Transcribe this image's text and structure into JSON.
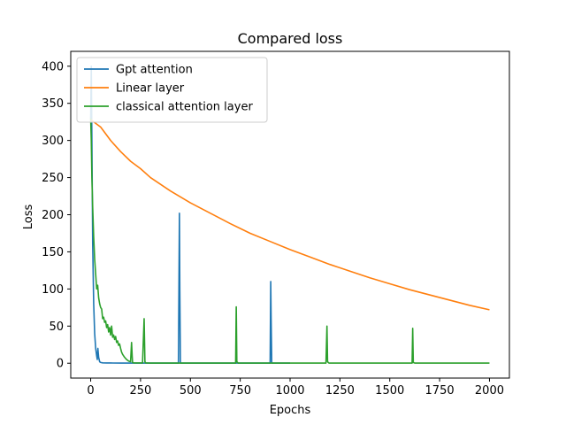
{
  "chart_data": {
    "type": "line",
    "title": "Compared loss",
    "xlabel": "Epochs",
    "ylabel": "Loss",
    "xlim": [
      -100,
      2100
    ],
    "ylim": [
      -20,
      420
    ],
    "xticks": [
      0,
      250,
      500,
      750,
      1000,
      1250,
      1500,
      1750,
      2000
    ],
    "yticks": [
      0,
      50,
      100,
      150,
      200,
      250,
      300,
      350,
      400
    ],
    "grid": false,
    "legend_position": "upper-left",
    "series": [
      {
        "name": "Gpt attention",
        "color": "#1f77b4",
        "x": [
          0,
          3,
          6,
          10,
          15,
          20,
          25,
          30,
          33,
          36,
          40,
          45,
          50,
          60,
          80,
          100,
          150,
          200,
          250,
          300,
          350,
          400,
          440,
          445,
          447,
          450,
          455,
          500,
          600,
          700,
          800,
          900,
          903,
          905,
          908,
          910,
          950,
          1000
        ],
        "y": [
          329,
          400,
          300,
          160,
          80,
          40,
          20,
          10,
          5,
          20,
          8,
          2,
          1,
          0.5,
          0.3,
          0.3,
          0.2,
          0.2,
          0.2,
          0.2,
          0.2,
          0.2,
          0.2,
          202,
          100,
          0.3,
          0.2,
          0.2,
          0.2,
          0.2,
          0.2,
          0.2,
          110,
          60,
          0.3,
          0.2,
          0.2,
          0.2
        ]
      },
      {
        "name": "Linear layer",
        "color": "#ff7f0e",
        "x": [
          0,
          50,
          100,
          150,
          200,
          250,
          300,
          400,
          500,
          600,
          700,
          800,
          900,
          1000,
          1100,
          1200,
          1300,
          1400,
          1500,
          1600,
          1700,
          1800,
          1900,
          2000
        ],
        "y": [
          328,
          318,
          300,
          285,
          272,
          262,
          250,
          232,
          216,
          202,
          188,
          175,
          164,
          153,
          143,
          133,
          124,
          115,
          107,
          99,
          92,
          85,
          78,
          72
        ]
      },
      {
        "name": "classical attention layer",
        "color": "#2ca02c",
        "x": [
          0,
          3,
          6,
          10,
          15,
          20,
          25,
          30,
          35,
          40,
          45,
          50,
          55,
          60,
          65,
          70,
          75,
          80,
          85,
          90,
          95,
          100,
          105,
          110,
          115,
          120,
          125,
          130,
          135,
          140,
          145,
          150,
          155,
          160,
          170,
          180,
          190,
          200,
          205,
          208,
          210,
          215,
          230,
          260,
          268,
          272,
          276,
          280,
          300,
          400,
          500,
          600,
          700,
          727,
          730,
          733,
          740,
          800,
          900,
          1000,
          1100,
          1180,
          1185,
          1188,
          1195,
          1300,
          1400,
          1500,
          1600,
          1612,
          1615,
          1618,
          1625,
          1700,
          1800,
          1900,
          2000
        ],
        "y": [
          330,
          300,
          250,
          210,
          170,
          140,
          120,
          100,
          105,
          88,
          80,
          75,
          73,
          60,
          62,
          55,
          57,
          48,
          52,
          42,
          48,
          38,
          50,
          35,
          38,
          32,
          36,
          28,
          30,
          24,
          26,
          20,
          15,
          12,
          8,
          5,
          3,
          2,
          28,
          10,
          1,
          0.5,
          0.3,
          0.3,
          60,
          2,
          0.3,
          0.3,
          0.2,
          0.2,
          0.2,
          0.2,
          0.2,
          0.2,
          76,
          2,
          0.2,
          0.2,
          0.2,
          0.2,
          0.2,
          0.2,
          50,
          2,
          0.2,
          0.2,
          0.2,
          0.2,
          0.2,
          0.2,
          47,
          1,
          0.2,
          0.2,
          0.2,
          0.2,
          0.2
        ]
      }
    ]
  }
}
